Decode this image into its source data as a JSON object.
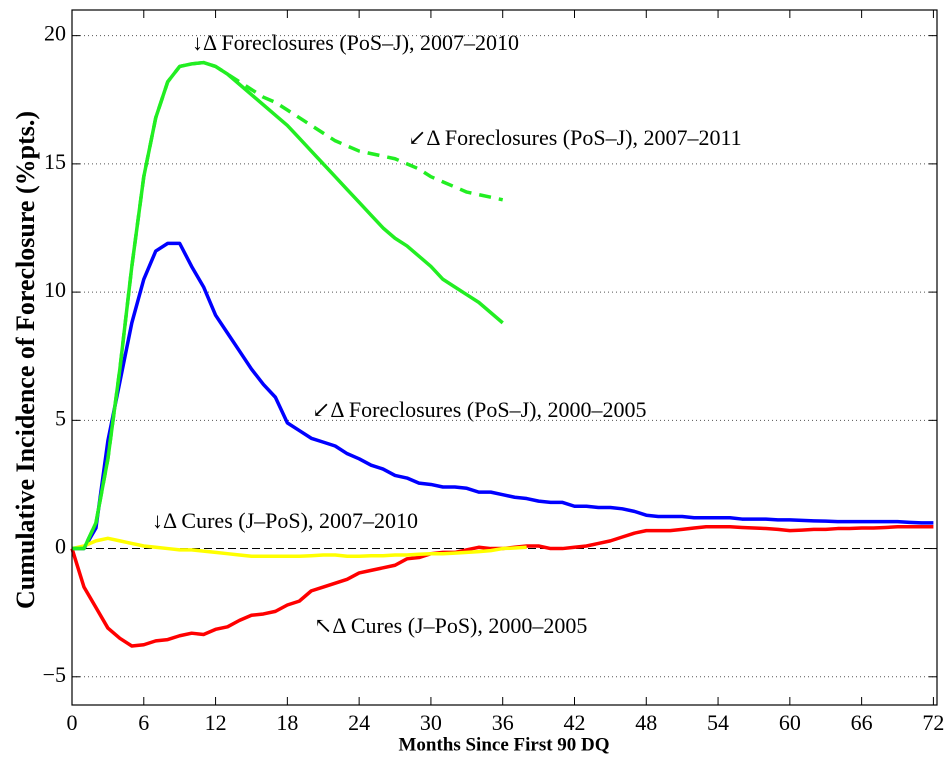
{
  "chart_data": {
    "type": "line",
    "xlabel": "Months Since First 90 DQ",
    "ylabel": "Cumulative Incidence of Foreclosure (%pts.)",
    "x": [
      0,
      1,
      2,
      3,
      4,
      5,
      6,
      7,
      8,
      9,
      10,
      11,
      12,
      13,
      14,
      15,
      16,
      17,
      18,
      19,
      20,
      21,
      22,
      23,
      24,
      25,
      26,
      27,
      28,
      29,
      30,
      31,
      32,
      33,
      34,
      35,
      36,
      37,
      38,
      39,
      40,
      41,
      42,
      43,
      44,
      45,
      46,
      47,
      48,
      49,
      50,
      51,
      52,
      53,
      54,
      55,
      56,
      57,
      58,
      59,
      60,
      61,
      62,
      63,
      64,
      65,
      66,
      67,
      68,
      69,
      70,
      71,
      72
    ],
    "series": [
      {
        "color": "#0000ff",
        "linestyle": "solid",
        "values": [
          0,
          0,
          0.8,
          4.2,
          6.5,
          8.8,
          10.5,
          11.6,
          11.9,
          11.9,
          11,
          10.2,
          9.1,
          8.4,
          7.7,
          7,
          6.4,
          5.9,
          4.9,
          4.6,
          4.3,
          4.15,
          4,
          3.7,
          3.5,
          3.25,
          3.1,
          2.85,
          2.75,
          2.55,
          2.5,
          2.4,
          2.4,
          2.35,
          2.2,
          2.2,
          2.1,
          2,
          1.95,
          1.85,
          1.8,
          1.8,
          1.65,
          1.65,
          1.6,
          1.6,
          1.55,
          1.45,
          1.3,
          1.25,
          1.25,
          1.25,
          1.2,
          1.2,
          1.2,
          1.2,
          1.15,
          1.15,
          1.15,
          1.12,
          1.12,
          1.1,
          1.08,
          1.07,
          1.05,
          1.05,
          1.05,
          1.05,
          1.05,
          1.05,
          1.02,
          1,
          1
        ]
      },
      {
        "color": "#ff0000",
        "linestyle": "solid",
        "values": [
          0,
          -1.5,
          -2.3,
          -3.1,
          -3.5,
          -3.8,
          -3.75,
          -3.6,
          -3.55,
          -3.4,
          -3.3,
          -3.35,
          -3.15,
          -3.05,
          -2.8,
          -2.6,
          -2.55,
          -2.45,
          -2.2,
          -2.05,
          -1.65,
          -1.5,
          -1.35,
          -1.2,
          -0.95,
          -0.85,
          -0.75,
          -0.65,
          -0.4,
          -0.35,
          -0.2,
          -0.15,
          -0.15,
          -0.05,
          0.05,
          0,
          0,
          0.05,
          0.1,
          0.1,
          0,
          0,
          0.05,
          0.1,
          0.2,
          0.3,
          0.45,
          0.6,
          0.7,
          0.7,
          0.7,
          0.75,
          0.8,
          0.85,
          0.85,
          0.85,
          0.82,
          0.8,
          0.78,
          0.75,
          0.7,
          0.72,
          0.75,
          0.75,
          0.78,
          0.78,
          0.8,
          0.8,
          0.82,
          0.85,
          0.85,
          0.85,
          0.85
        ]
      },
      {
        "color": "#ffff00",
        "linestyle": "solid",
        "values": [
          0,
          0.1,
          0.3,
          0.4,
          0.3,
          0.2,
          0.1,
          0.05,
          0,
          -0.05,
          -0.05,
          -0.1,
          -0.15,
          -0.2,
          -0.25,
          -0.3,
          -0.3,
          -0.3,
          -0.3,
          -0.3,
          -0.28,
          -0.25,
          -0.25,
          -0.3,
          -0.3,
          -0.28,
          -0.28,
          -0.25,
          -0.25,
          -0.22,
          -0.2,
          -0.2,
          -0.18,
          -0.15,
          -0.12,
          -0.08,
          0,
          0.02,
          0.05,
          null,
          null,
          null,
          null,
          null,
          null,
          null,
          null,
          null,
          null,
          null,
          null,
          null,
          null,
          null,
          null,
          null,
          null,
          null,
          null,
          null,
          null,
          null,
          null,
          null,
          null,
          null,
          null,
          null,
          null,
          null,
          null,
          null,
          null
        ]
      },
      {
        "color": "#22ee22",
        "linestyle": "dashed",
        "values": [
          0,
          0,
          1,
          3.5,
          7,
          11,
          14.5,
          16.8,
          18.2,
          18.8,
          18.9,
          18.95,
          18.8,
          18.5,
          18.2,
          17.9,
          17.6,
          17.4,
          17.1,
          16.8,
          16.5,
          16.2,
          15.9,
          15.7,
          15.5,
          15.4,
          15.3,
          15.2,
          15,
          14.8,
          14.5,
          14.3,
          14.1,
          13.9,
          13.8,
          13.7,
          13.6,
          null,
          null,
          null,
          null,
          null,
          null,
          null,
          null,
          null,
          null,
          null,
          null,
          null,
          null,
          null,
          null,
          null,
          null,
          null,
          null,
          null,
          null,
          null,
          null,
          null,
          null,
          null,
          null,
          null,
          null,
          null,
          null,
          null,
          null,
          null,
          null
        ]
      },
      {
        "color": "#22ee22",
        "linestyle": "solid",
        "values": [
          0,
          0,
          1,
          3.5,
          7,
          11,
          14.5,
          16.8,
          18.2,
          18.8,
          18.9,
          18.95,
          18.8,
          18.5,
          18.1,
          17.7,
          17.3,
          16.9,
          16.5,
          16,
          15.5,
          15,
          14.5,
          14,
          13.5,
          13,
          12.5,
          12.1,
          11.8,
          11.4,
          11,
          10.5,
          10.2,
          9.9,
          9.6,
          9.2,
          8.8,
          null,
          null,
          null,
          null,
          null,
          null,
          null,
          null,
          null,
          null,
          null,
          null,
          null,
          null,
          null,
          null,
          null,
          null,
          null,
          null,
          null,
          null,
          null,
          null,
          null,
          null,
          null,
          null,
          null,
          null,
          null,
          null,
          null,
          null,
          null,
          null
        ]
      }
    ],
    "annotations": [
      "↓Δ Foreclosures (PoS–J), 2007–2010",
      "↙Δ Foreclosures (PoS–J), 2007–2011",
      "↙Δ Foreclosures (PoS–J), 2000–2005",
      "↓Δ Cures (J–PoS), 2007–2010",
      "↖Δ Cures (J–PoS), 2000–2005"
    ],
    "xlim": [
      0,
      72.3
    ],
    "ylim": [
      -6.1,
      21
    ],
    "xticks": [
      0,
      6,
      12,
      18,
      24,
      30,
      36,
      42,
      48,
      54,
      60,
      66,
      72
    ],
    "yticks": [
      {
        "value": -5,
        "label": "−5"
      },
      0,
      5,
      10,
      15,
      20
    ],
    "grid": true
  }
}
